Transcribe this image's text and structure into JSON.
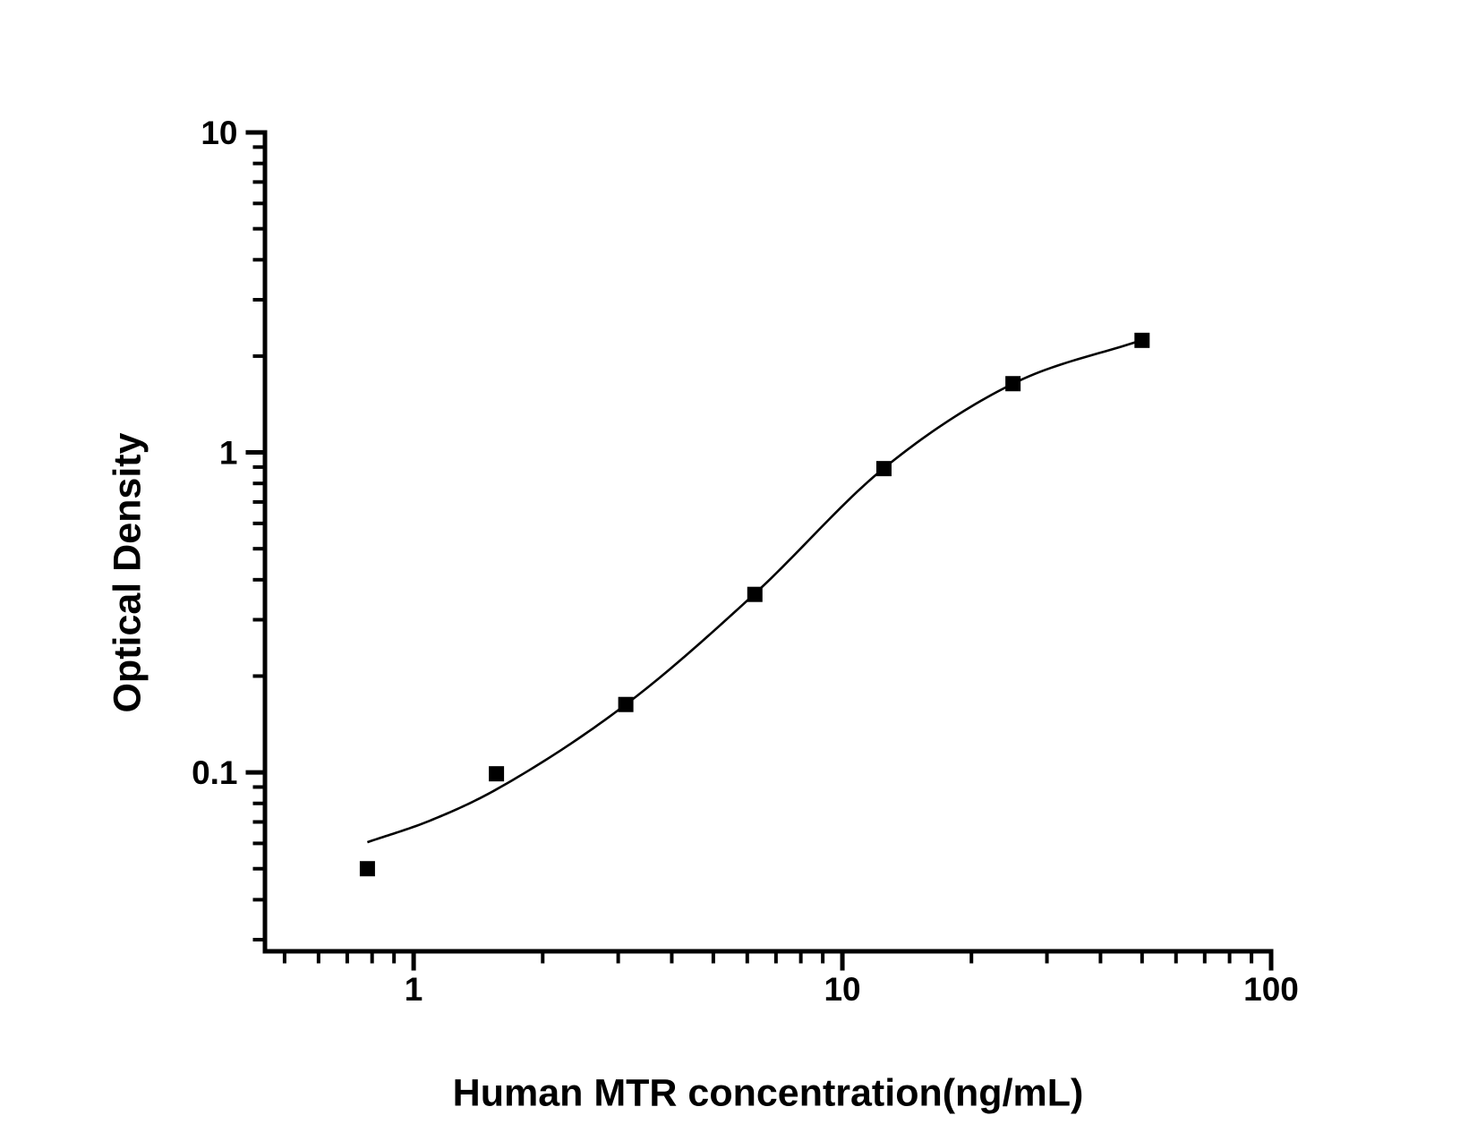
{
  "page": {
    "background": "#ffffff"
  },
  "chart_data": {
    "type": "scatter",
    "title": "",
    "xlabel": "Human MTR concentration(ng/mL)",
    "ylabel": "Optical Density",
    "x_scale": "log",
    "y_scale": "log",
    "xlim": [
      0.45,
      100
    ],
    "ylim": [
      0.0276,
      10
    ],
    "x_major_ticks": [
      1,
      10,
      100
    ],
    "y_major_ticks": [
      0.1,
      1,
      10
    ],
    "grid": false,
    "legend": false,
    "marker": "filled-square",
    "series": [
      {
        "name": "standard-points",
        "x": [
          0.78,
          1.56,
          3.125,
          6.25,
          12.5,
          25,
          50
        ],
        "y": [
          0.05,
          0.099,
          0.163,
          0.36,
          0.89,
          1.64,
          2.24
        ]
      }
    ],
    "fit_curve": {
      "name": "4PL-fit",
      "x": [
        0.78,
        1.09,
        1.56,
        3.125,
        6.25,
        12.5,
        25,
        50
      ],
      "y": [
        0.0605,
        0.0706,
        0.0885,
        0.163,
        0.362,
        0.893,
        1.64,
        2.245
      ]
    },
    "colors": {
      "foreground": "#000000",
      "background": "#ffffff"
    }
  }
}
